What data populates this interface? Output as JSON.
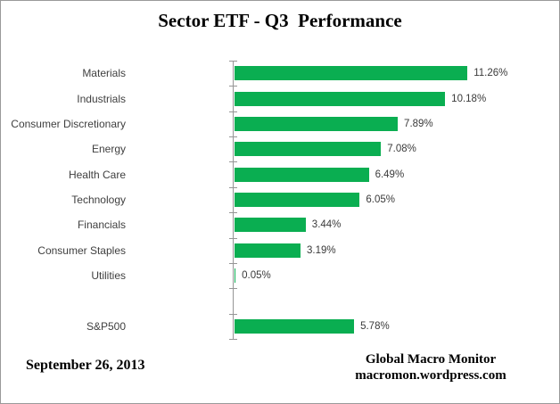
{
  "title": "Sector ETF - Q3  Performance",
  "footer": {
    "date": "September 26, 2013",
    "brand_line1": "Global Macro Monitor",
    "brand_line2": "macromon.wordpress.com"
  },
  "colors": {
    "bar": "#0aae51",
    "axis": "#969696",
    "frame_border": "#9a9a9a",
    "label_text": "#3f3f3f"
  },
  "chart_data": {
    "type": "bar",
    "orientation": "horizontal",
    "title": "Sector ETF - Q3  Performance",
    "categories": [
      "Materials",
      "Industrials",
      "Consumer Discretionary",
      "Energy",
      "Health Care",
      "Technology",
      "Financials",
      "Consumer Staples",
      "Utilities",
      "",
      "S&P500"
    ],
    "values": [
      11.26,
      10.18,
      7.89,
      7.08,
      6.49,
      6.05,
      3.44,
      3.19,
      0.05,
      null,
      5.78
    ],
    "value_labels": [
      "11.26%",
      "10.18%",
      "7.89%",
      "7.08%",
      "6.49%",
      "6.05%",
      "3.44%",
      "3.19%",
      "0.05%",
      "",
      "5.78%"
    ],
    "xlabel": "",
    "ylabel": "",
    "xlim": [
      0,
      12
    ],
    "grid": false,
    "legend": false,
    "bar_color": "#0aae51"
  }
}
